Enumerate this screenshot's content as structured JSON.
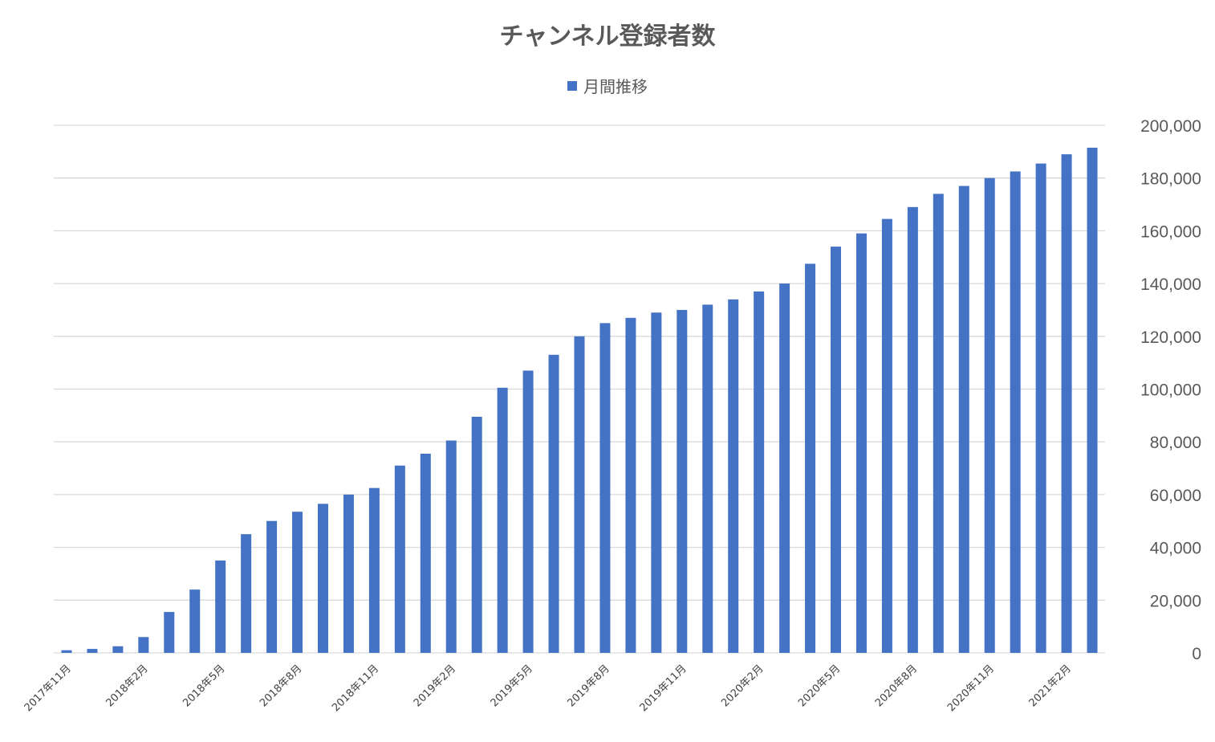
{
  "chart_data": {
    "type": "bar",
    "title": "チャンネル登録者数",
    "legend_position": "top",
    "grid": true,
    "y_axis_position": "right",
    "ylim": [
      0,
      200000
    ],
    "yticks": [
      "0",
      "20,000",
      "40,000",
      "60,000",
      "80,000",
      "100,000",
      "120,000",
      "140,000",
      "160,000",
      "180,000",
      "200,000"
    ],
    "x_tick_labels": [
      "2017年11月",
      "2018年2月",
      "2018年5月",
      "2018年8月",
      "2018年11月",
      "2019年2月",
      "2019年5月",
      "2019年8月",
      "2019年11月",
      "2020年2月",
      "2020年5月",
      "2020年8月",
      "2020年11月",
      "2021年2月"
    ],
    "x_tick_every": 3,
    "colors": {
      "bar": "#4472C4",
      "grid": "#D9D9D9",
      "text": "#595959"
    },
    "series": [
      {
        "name": "月間推移",
        "values": [
          1000,
          1500,
          2500,
          6000,
          15500,
          24000,
          35000,
          45000,
          50000,
          53500,
          56500,
          60000,
          62500,
          71000,
          75500,
          80500,
          89500,
          100500,
          107000,
          113000,
          120000,
          125000,
          127000,
          129000,
          130000,
          132000,
          134000,
          137000,
          140000,
          147500,
          154000,
          159000,
          164500,
          169000,
          174000,
          177000,
          180000,
          182500,
          185500,
          189000,
          191500
        ]
      }
    ]
  }
}
